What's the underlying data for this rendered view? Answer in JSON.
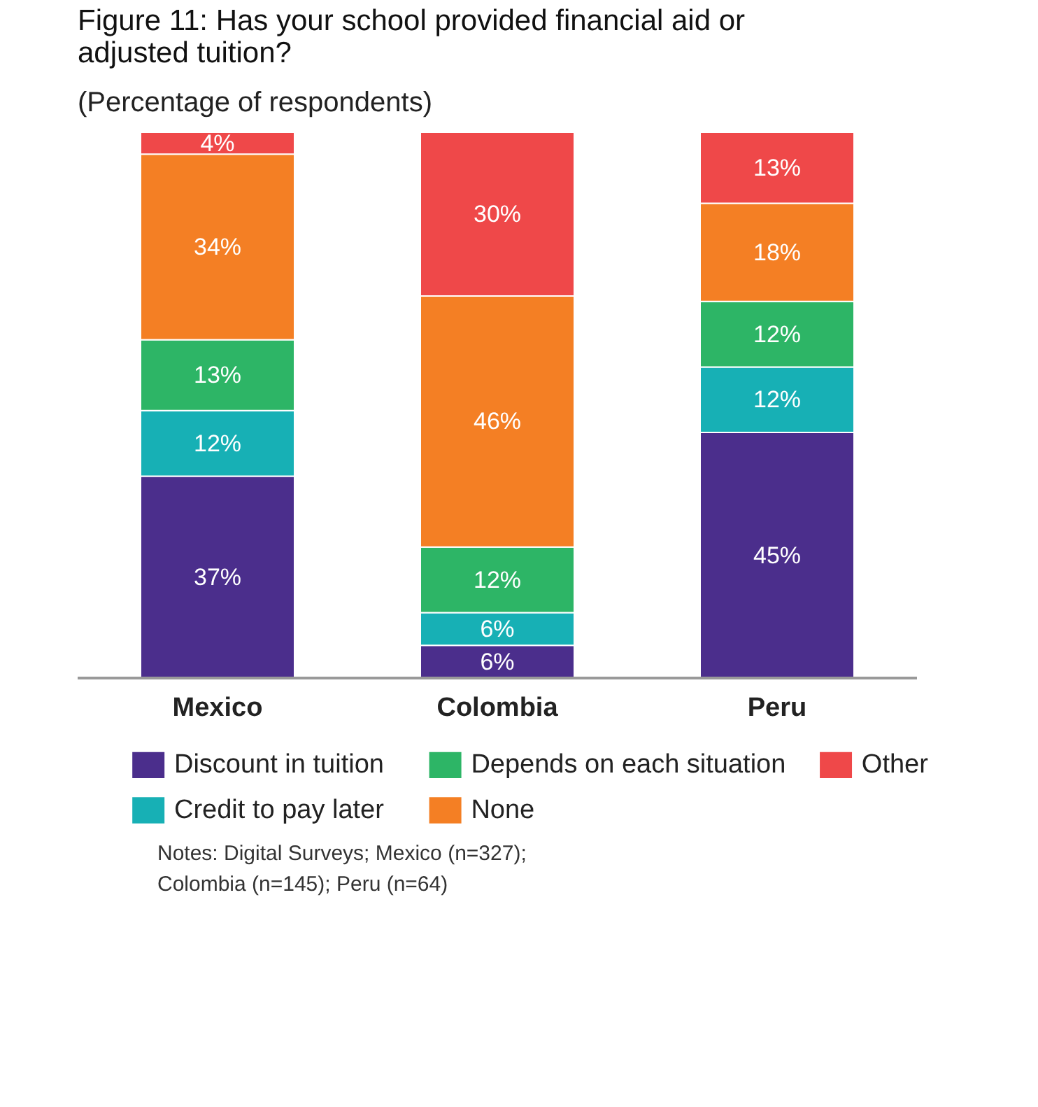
{
  "chart_data": {
    "type": "bar",
    "title": "Figure 11: Has your school provided financial aid or\nadjusted tuition?",
    "subtitle": "(Percentage of respondents)",
    "categories": [
      "Mexico",
      "Colombia",
      "Peru"
    ],
    "stacked": true,
    "ylim": [
      0,
      100
    ],
    "tick_labels": "x",
    "legend": "bottom",
    "series": [
      {
        "name": "Discount in tuition",
        "color": "#4b2e8c",
        "values": [
          37,
          6,
          45
        ],
        "value_labels": [
          "37%",
          "6%",
          "45%"
        ]
      },
      {
        "name": "Credit to pay later",
        "color": "#17b0b5",
        "values": [
          12,
          6,
          12
        ],
        "value_labels": [
          "12%",
          "6%",
          "12%"
        ]
      },
      {
        "name": "Depends on each situation",
        "color": "#2db566",
        "values": [
          13,
          12,
          12
        ],
        "value_labels": [
          "13%",
          "12%",
          "12%"
        ]
      },
      {
        "name": "None",
        "color": "#f47f24",
        "values": [
          34,
          46,
          18
        ],
        "value_labels": [
          "34%",
          "46%",
          "18%"
        ]
      },
      {
        "name": "Other",
        "color": "#ef4849",
        "values": [
          4,
          30,
          13
        ],
        "value_labels": [
          "4%",
          "30%",
          "13%"
        ]
      }
    ],
    "annotations": [
      "Notes: Digital Surveys; Mexico (n=327);\nColombia (n=145); Peru (n=64)"
    ]
  }
}
